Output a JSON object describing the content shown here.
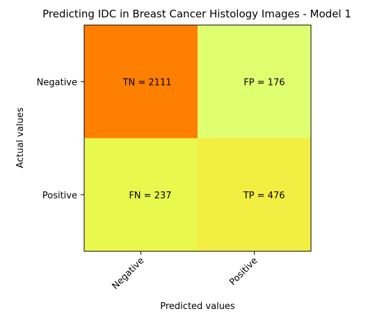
{
  "chart_data": {
    "type": "heatmap",
    "title": "Predicting IDC in Breast Cancer Histology Images - Model 1",
    "xlabel": "Predicted values",
    "ylabel": "Actual values",
    "x_categories": [
      "Negative",
      "Positive"
    ],
    "y_categories": [
      "Negative",
      "Positive"
    ],
    "cells": [
      {
        "row": 0,
        "col": 0,
        "value": 2111,
        "label": "TN = 2111",
        "color": "#ff7f00"
      },
      {
        "row": 0,
        "col": 1,
        "value": 176,
        "label": "FP = 176",
        "color": "#e0ff70"
      },
      {
        "row": 1,
        "col": 0,
        "value": 237,
        "label": "FN = 237",
        "color": "#e8f84c"
      },
      {
        "row": 1,
        "col": 1,
        "value": 476,
        "label": "TP = 476",
        "color": "#f2ef42"
      }
    ],
    "colormap": "Wistia",
    "grid": false
  }
}
